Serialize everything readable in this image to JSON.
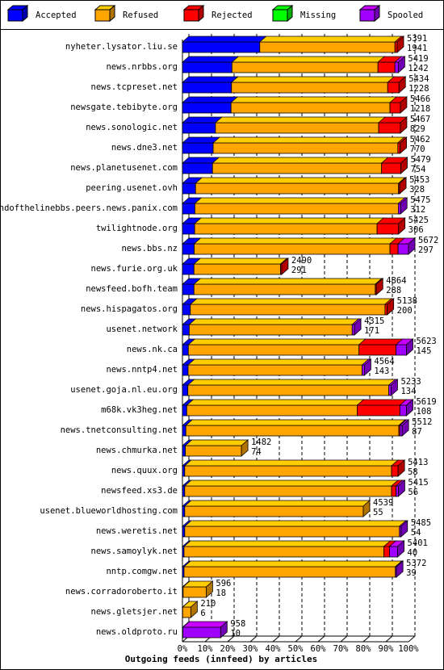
{
  "chart_data": {
    "type": "bar",
    "orientation": "horizontal",
    "stacked": true,
    "xlabel": "Outgoing feeds (innfeed) by articles",
    "categories": [
      "nyheter.lysator.liu.se",
      "news.nrbbs.org",
      "news.tcpreset.net",
      "newsgate.tebibyte.org",
      "news.sonologic.net",
      "news.dne3.net",
      "news.planetusenet.com",
      "peering.usenet.ovh",
      "endofthelinebbs.peers.news.panix.com",
      "twilightnode.org",
      "news.bbs.nz",
      "news.furie.org.uk",
      "newsfeed.bofh.team",
      "news.hispagatos.org",
      "usenet.network",
      "news.nk.ca",
      "news.nntp4.net",
      "usenet.goja.nl.eu.org",
      "m68k.vk3heg.net",
      "news.tnetconsulting.net",
      "news.chmurka.net",
      "news.quux.org",
      "newsfeed.xs3.de",
      "usenet.blueworldhosting.com",
      "news.weretis.net",
      "news.samoylyk.net",
      "nntp.comgw.net",
      "news.corradoroberto.it",
      "news.gletsjer.net",
      "news.oldproto.ru"
    ],
    "offered": [
      5391,
      5419,
      5434,
      5466,
      5467,
      5462,
      5479,
      5453,
      5475,
      5425,
      5672,
      2490,
      4864,
      5138,
      4315,
      5623,
      4564,
      5233,
      5619,
      5512,
      1482,
      5413,
      5415,
      4539,
      5485,
      5401,
      5372,
      596,
      210,
      958
    ],
    "accepted_count": [
      1941,
      1242,
      1228,
      1218,
      829,
      770,
      754,
      328,
      312,
      306,
      297,
      291,
      288,
      200,
      171,
      145,
      143,
      134,
      108,
      87,
      74,
      58,
      56,
      55,
      54,
      40,
      39,
      18,
      6,
      10
    ],
    "series": [
      {
        "name": "Accepted",
        "color": "#0000ff",
        "values": [
          34.2,
          21.9,
          21.7,
          21.5,
          14.6,
          13.6,
          13.3,
          5.8,
          5.5,
          5.4,
          5.2,
          5.1,
          5.1,
          3.5,
          3.0,
          2.6,
          2.5,
          2.4,
          1.9,
          1.5,
          1.3,
          1.0,
          1.0,
          1.0,
          1.0,
          0.7,
          0.7,
          0.3,
          0.1,
          0.2
        ]
      },
      {
        "name": "Refused",
        "color": "#ffa500",
        "values": [
          59.8,
          64.6,
          69.1,
          70.3,
          72.2,
          81.7,
          74.8,
          89.8,
          90.0,
          80.7,
          86.6,
          38.3,
          80.2,
          86.1,
          72.1,
          75.5,
          77.0,
          88.9,
          75.4,
          94.2,
          24.8,
          91.5,
          91.5,
          79.0,
          95.0,
          88.4,
          93.5,
          10.2,
          3.6,
          0
        ]
      },
      {
        "name": "Rejected",
        "color": "#ff0000",
        "values": [
          1.0,
          7.5,
          5.0,
          4.6,
          9.6,
          1.0,
          8.5,
          0.5,
          0,
          9.5,
          3.6,
          0.5,
          0.5,
          1.0,
          0,
          16.4,
          0,
          0,
          18.9,
          0.5,
          0,
          2.9,
          2.0,
          0,
          0,
          2.5,
          0,
          0,
          0,
          0
        ]
      },
      {
        "name": "Missing",
        "color": "#00ff00",
        "values": [
          0,
          0,
          0,
          0,
          0,
          0,
          0,
          0,
          0,
          0,
          0,
          0,
          0,
          0,
          0,
          0,
          0,
          0,
          0,
          0,
          0,
          0,
          0,
          0,
          0,
          0,
          0,
          0,
          0,
          0
        ]
      },
      {
        "name": "Spooled",
        "color": "#a000ff",
        "values": [
          0,
          1.5,
          0,
          0,
          0,
          0,
          0,
          0,
          1.0,
          0,
          4.6,
          0,
          0,
          0,
          1.0,
          4.6,
          1.0,
          1.0,
          2.9,
          1.0,
          0,
          0,
          1.0,
          0,
          0.7,
          3.6,
          0.5,
          0,
          0,
          16.7
        ]
      }
    ],
    "xlim": [
      0,
      100
    ],
    "xticks": [
      {
        "value": 0,
        "label": "0%"
      },
      {
        "value": 10,
        "label": "10%"
      },
      {
        "value": 20,
        "label": "20%"
      },
      {
        "value": 30,
        "label": "30%"
      },
      {
        "value": 40,
        "label": "40%"
      },
      {
        "value": 50,
        "label": "50%"
      },
      {
        "value": 60,
        "label": "60%"
      },
      {
        "value": 70,
        "label": "70%"
      },
      {
        "value": 80,
        "label": "80%"
      },
      {
        "value": 90,
        "label": "90%"
      },
      {
        "value": 100,
        "label": "100%"
      }
    ],
    "grid": true,
    "legend": "top"
  }
}
